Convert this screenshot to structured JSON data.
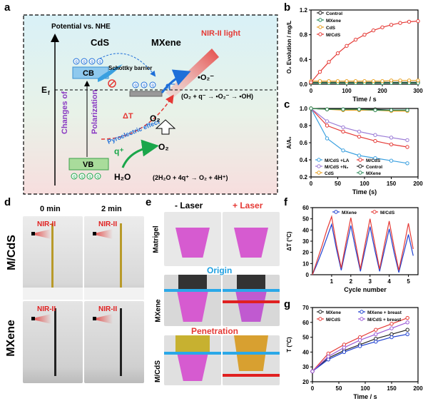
{
  "panels": {
    "a": "a",
    "b": "b",
    "c": "c",
    "d": "d",
    "e": "e",
    "f": "f",
    "g": "g"
  },
  "panel_a": {
    "potential": "Potential vs. NHE",
    "cds": "CdS",
    "mxene": "MXene",
    "nir": "NIR-II light",
    "cb": "CB",
    "vb": "VB",
    "ef": "E",
    "ef_sub": "f",
    "schottky": "Schottky barrier",
    "changes": "Changes of",
    "polarization": "Polarization",
    "delta_t": "ΔT",
    "pyro": "Pyroelectric effect",
    "o2_up": "O₂",
    "o2_low": "O₂",
    "superoxide": "•O₂⁻",
    "qminus": "q⁻",
    "qplus": "q⁺",
    "h2o": "H₂O",
    "eq1": "(O₂ + q⁻ → •O₂⁻ → •OH)",
    "eq2": "(2H₂O + 4q⁺ → O₂ + 4H⁺)",
    "charge_minus": "q⁻",
    "charge_plus": "q⁺"
  },
  "panel_d": {
    "t0": "0 min",
    "t2": "2 min",
    "row1": "M/CdS",
    "row2": "MXene",
    "nir": "NIR-II"
  },
  "panel_e": {
    "minus": "- Laser",
    "plus": "+ Laser",
    "matrigel": "Matrigel",
    "origin": "Origin",
    "mxene": "MXene",
    "penetration": "Penetration",
    "mcds": "M/CdS"
  },
  "colors": {
    "red": "#e53935",
    "blue": "#1e6fd9",
    "green": "#1aa64a",
    "purple": "#8a3ac2",
    "pink": "#d64bc8"
  },
  "chart_data": [
    {
      "id": "b",
      "type": "line",
      "xlabel": "Time / s",
      "ylabel": "O₂ Evolution / mg/L",
      "xlim": [
        0,
        300
      ],
      "xticks": [
        "0",
        "100",
        "200",
        "300"
      ],
      "ylim": [
        0,
        1.2
      ],
      "yticks": [
        "0.0",
        "0.4",
        "0.8",
        "1.2"
      ],
      "legend": [
        "Control",
        "MXene",
        "CdS",
        "M/CdS"
      ],
      "x": [
        0,
        25,
        50,
        75,
        100,
        125,
        150,
        175,
        200,
        225,
        250,
        275,
        300
      ],
      "series": [
        {
          "name": "Control",
          "color": "#222222",
          "values": [
            0.03,
            0.03,
            0.03,
            0.03,
            0.03,
            0.03,
            0.03,
            0.03,
            0.03,
            0.03,
            0.03,
            0.03,
            0.03
          ]
        },
        {
          "name": "MXene",
          "color": "#2a8a5a",
          "values": [
            0.02,
            0.02,
            0.02,
            0.02,
            0.02,
            0.02,
            0.02,
            0.02,
            0.02,
            0.02,
            0.02,
            0.02,
            0.02
          ]
        },
        {
          "name": "CdS",
          "color": "#e8a020",
          "values": [
            0.05,
            0.05,
            0.05,
            0.05,
            0.05,
            0.05,
            0.05,
            0.05,
            0.05,
            0.06,
            0.06,
            0.06,
            0.06
          ]
        },
        {
          "name": "M/CdS",
          "color": "#e53935",
          "values": [
            0.03,
            0.2,
            0.36,
            0.5,
            0.62,
            0.72,
            0.8,
            0.87,
            0.92,
            0.96,
            0.99,
            1.01,
            1.02
          ]
        }
      ]
    },
    {
      "id": "c",
      "type": "line",
      "xlabel": "Time (s)",
      "ylabel": "A/A₀",
      "xlim": [
        0,
        200
      ],
      "xticks": [
        "0",
        "50",
        "100",
        "150",
        "200"
      ],
      "ylim": [
        0.2,
        1.0
      ],
      "yticks": [
        "0.2",
        "0.4",
        "0.6",
        "0.8",
        "1.0"
      ],
      "legend": [
        "M/CdS +LA",
        "M/CdS",
        "M/CdS +N₂",
        "Control",
        "CdS",
        "MXene"
      ],
      "x": [
        0,
        30,
        60,
        90,
        120,
        150,
        180
      ],
      "series": [
        {
          "name": "M/CdS +LA",
          "color": "#3aa0e0",
          "values": [
            1.0,
            0.65,
            0.51,
            0.45,
            0.42,
            0.39,
            0.36
          ]
        },
        {
          "name": "M/CdS",
          "color": "#e53935",
          "values": [
            1.0,
            0.8,
            0.73,
            0.67,
            0.62,
            0.58,
            0.55
          ]
        },
        {
          "name": "M/CdS +N₂",
          "color": "#9a7ad6",
          "values": [
            1.0,
            0.85,
            0.78,
            0.73,
            0.69,
            0.66,
            0.63
          ]
        },
        {
          "name": "Control",
          "color": "#222222",
          "values": [
            1.0,
            0.99,
            0.99,
            0.99,
            0.99,
            0.98,
            0.98
          ]
        },
        {
          "name": "CdS",
          "color": "#e8a020",
          "values": [
            1.0,
            0.99,
            0.98,
            0.98,
            0.98,
            0.97,
            0.97
          ]
        },
        {
          "name": "MXene",
          "color": "#2a8a5a",
          "values": [
            1.0,
            0.99,
            0.99,
            0.99,
            0.98,
            0.98,
            0.98
          ]
        }
      ]
    },
    {
      "id": "f",
      "type": "line",
      "xlabel": "Cycle number",
      "ylabel": "ΔT (°C)",
      "xlim": [
        0,
        5.5
      ],
      "xticks": [
        "1",
        "2",
        "3",
        "4",
        "5"
      ],
      "ylim": [
        0,
        60
      ],
      "yticks": [
        "0",
        "10",
        "20",
        "30",
        "40",
        "50",
        "60"
      ],
      "legend": [
        "MXene",
        "M/CdS"
      ],
      "x": [
        0,
        0.25,
        0.5,
        0.75,
        1,
        1.25,
        1.5,
        1.75,
        2,
        2.25,
        2.5,
        2.75,
        3,
        3.25,
        3.5,
        3.75,
        4,
        4.25,
        4.5,
        4.75,
        5,
        5.25
      ],
      "series": [
        {
          "name": "MXene",
          "color": "#1e40d0",
          "values": [
            0,
            10,
            21,
            33,
            45,
            23,
            4,
            24,
            44,
            23,
            3,
            23,
            43,
            22,
            3,
            22,
            41,
            20,
            2,
            19,
            36,
            17
          ]
        },
        {
          "name": "M/CdS",
          "color": "#e53935",
          "values": [
            0,
            13,
            26,
            40,
            52,
            27,
            6,
            29,
            51,
            28,
            5,
            28,
            50,
            27,
            5,
            27,
            48,
            25,
            4,
            24,
            46,
            23
          ]
        }
      ]
    },
    {
      "id": "g",
      "type": "line",
      "xlabel": "Time / s",
      "ylabel": "T (°C)",
      "xlim": [
        0,
        200
      ],
      "xticks": [
        "0",
        "50",
        "100",
        "150",
        "200"
      ],
      "ylim": [
        20,
        70
      ],
      "yticks": [
        "20",
        "30",
        "40",
        "50",
        "60",
        "70"
      ],
      "legend": [
        "MXene",
        "MXene + breast",
        "M/CdS",
        "M/CdS + breast"
      ],
      "x": [
        0,
        30,
        60,
        90,
        120,
        150,
        180
      ],
      "series": [
        {
          "name": "MXene",
          "color": "#222222",
          "values": [
            27,
            36,
            41,
            45,
            49,
            52,
            55
          ]
        },
        {
          "name": "MXene + breast",
          "color": "#1e40d0",
          "values": [
            27,
            35,
            40,
            44,
            47,
            50,
            52
          ]
        },
        {
          "name": "M/CdS",
          "color": "#e53935",
          "values": [
            27,
            39,
            45,
            50,
            55,
            59,
            63
          ]
        },
        {
          "name": "M/CdS + breast",
          "color": "#9a5ad6",
          "values": [
            27,
            37,
            43,
            48,
            52,
            56,
            60
          ]
        }
      ]
    }
  ]
}
